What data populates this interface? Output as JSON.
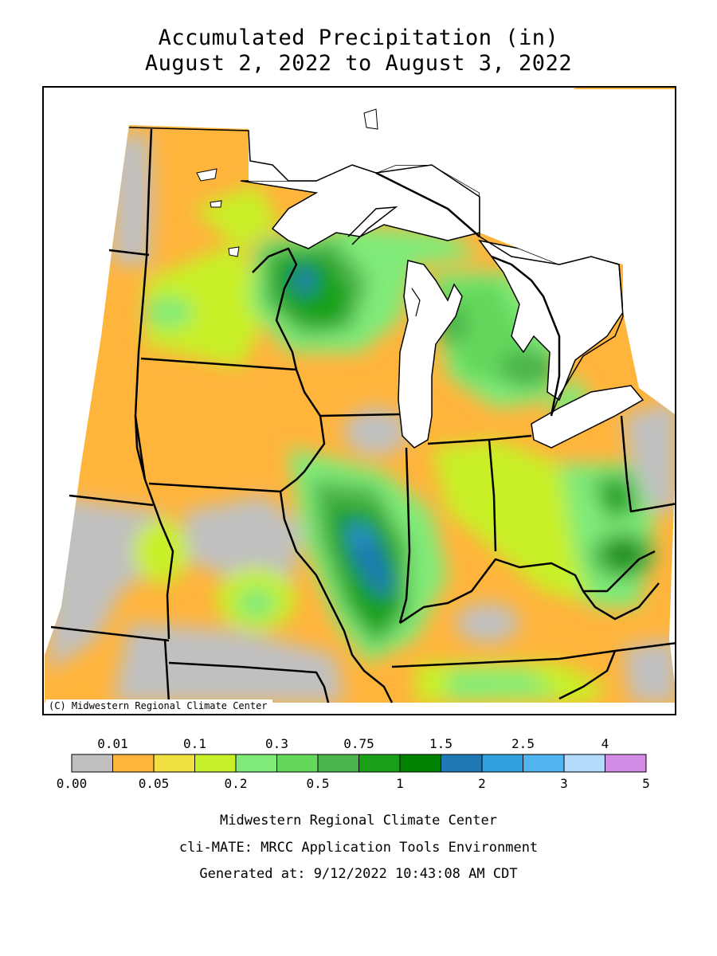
{
  "title": {
    "line1": "Accumulated Precipitation (in)",
    "line2": "August 2, 2022 to August 3, 2022"
  },
  "map": {
    "credit": "(C) Midwestern Regional Climate Center",
    "region": "Midwest United States",
    "lake_color": "#ffffff",
    "border_color": "#000000"
  },
  "legend": {
    "top_labels": [
      "0.01",
      "0.1",
      "0.3",
      "0.75",
      "1.5",
      "2.5",
      "4"
    ],
    "bottom_labels": [
      "0.00",
      "0.05",
      "0.2",
      "0.5",
      "1",
      "2",
      "3",
      "5"
    ],
    "colors": [
      "#c0c0c0",
      "#ffb43c",
      "#f0e040",
      "#c8f028",
      "#80ea78",
      "#64d85c",
      "#4cb44c",
      "#18a018",
      "#008200",
      "#1e78b4",
      "#32a0dc",
      "#50b4f0",
      "#b4dcfa",
      "#d28ce6"
    ]
  },
  "footer": {
    "line1": "Midwestern Regional Climate Center",
    "line2": "cli-MATE: MRCC Application Tools Environment",
    "line3": "Generated at: 9/12/2022 10:43:08 AM CDT"
  }
}
